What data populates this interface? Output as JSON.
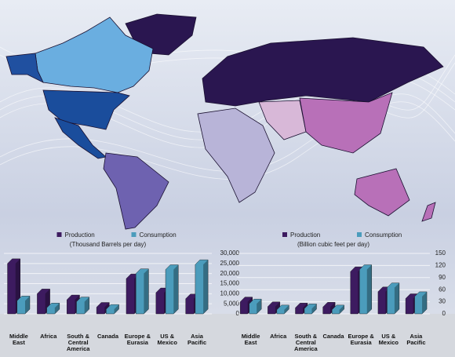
{
  "chart_data": [
    {
      "type": "bar",
      "subtitle": "(Thousand Barrels per day)",
      "categories": [
        "Middle East",
        "Africa",
        "South & Central America",
        "Canada",
        "Europe & Eurasia",
        "US & Mexico",
        "Asia Pacific"
      ],
      "series": [
        {
          "name": "Production",
          "color": "#3d1b60",
          "values": [
            25000,
            10000,
            7000,
            3300,
            17500,
            10500,
            7500
          ]
        },
        {
          "name": "Consumption",
          "color": "#4b9cbc",
          "values": [
            6500,
            3000,
            6000,
            2300,
            20000,
            22000,
            24500
          ]
        }
      ],
      "ylim": [
        0,
        30000
      ],
      "yticks": [
        0,
        {
          "value": 5000,
          "label": "5,000"
        },
        {
          "value": 10000,
          "label": "10,000"
        },
        {
          "value": 15000,
          "label": "15,000"
        },
        {
          "value": 20000,
          "label": "20,000"
        },
        {
          "value": 25000,
          "label": "25,000"
        },
        {
          "value": 30000,
          "label": "30,000"
        }
      ],
      "grid": true
    },
    {
      "type": "bar",
      "subtitle": "(Billion cubic feet per day)",
      "categories": [
        "Middle East",
        "Africa",
        "South & Central America",
        "Canada",
        "Europe & Eurasia",
        "US & Mexico",
        "Asia Pacific"
      ],
      "series": [
        {
          "name": "Production",
          "color": "#3d1b60",
          "values": [
            30,
            18,
            15,
            17,
            105,
            55,
            38
          ]
        },
        {
          "name": "Consumption",
          "color": "#4b9cbc",
          "values": [
            25,
            10,
            13,
            10,
            110,
            65,
            43
          ]
        }
      ],
      "ylim": [
        0,
        150
      ],
      "yticks": [
        0,
        30,
        60,
        90,
        120,
        150
      ],
      "grid": true
    }
  ]
}
